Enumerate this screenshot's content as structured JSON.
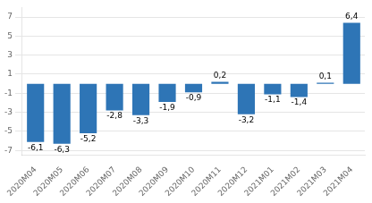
{
  "chart_data": {
    "type": "bar",
    "categories": [
      "2020M04",
      "2020M05",
      "2020M06",
      "2020M07",
      "2020M08",
      "2020M09",
      "2020M10",
      "2020M11",
      "2020M12",
      "2021M01",
      "2021M02",
      "2021M03",
      "2021M04"
    ],
    "values": [
      -6.1,
      -6.3,
      -5.2,
      -2.8,
      -3.3,
      -1.9,
      -0.9,
      0.2,
      -3.2,
      -1.1,
      -1.4,
      0.1,
      6.4
    ],
    "value_labels": [
      "-6,1",
      "-6,3",
      "-5,2",
      "-2,8",
      "-3,3",
      "-1,9",
      "-0,9",
      "0,2",
      "-3,2",
      "-1,1",
      "-1,4",
      "0,1",
      "6,4"
    ],
    "color": "#2e75b6",
    "ylim": [
      -7.5,
      8.0
    ],
    "yticks": [
      -7,
      -5,
      -3,
      -1,
      1,
      3,
      5,
      7
    ],
    "grid": true,
    "data_labels": true
  }
}
